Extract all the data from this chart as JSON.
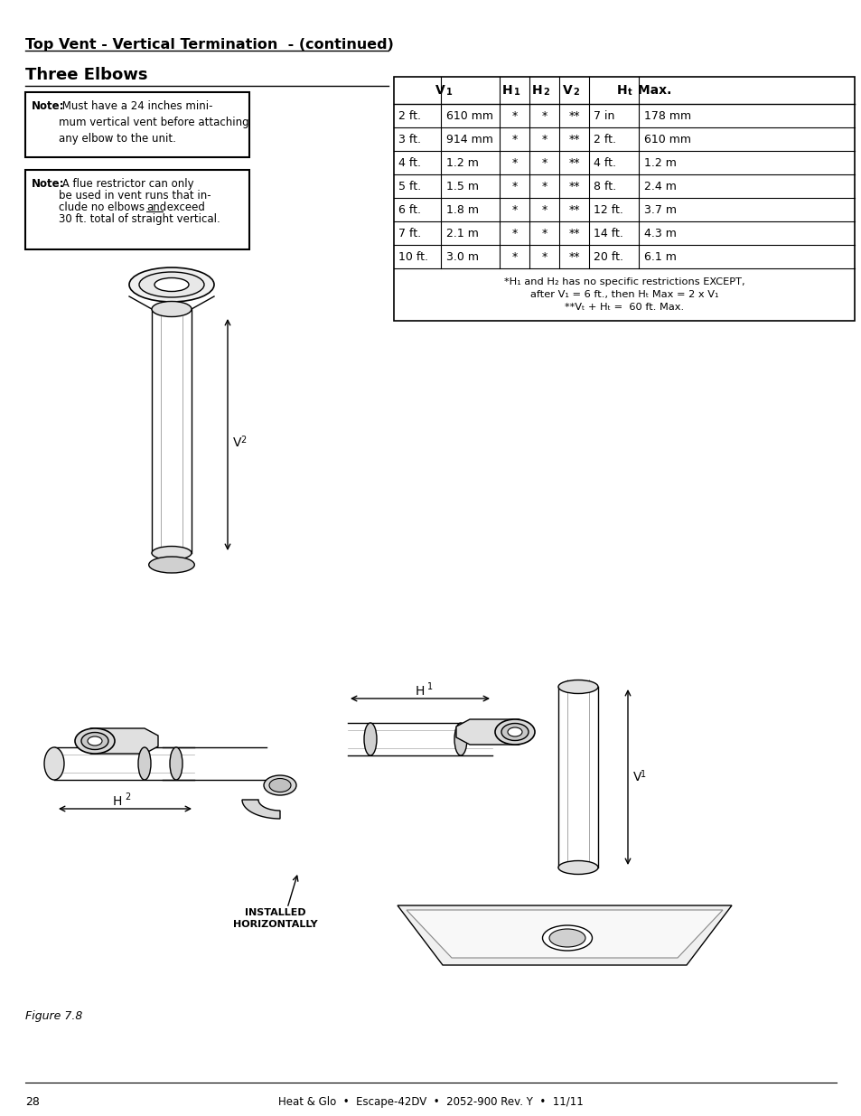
{
  "page_title": "Top Vent - Vertical Termination  - (continued)",
  "section_title": "Three Elbows",
  "note1_text_bold": "Note:",
  "note1_text_rest": " Must have a 24 inches mini-\nmum vertical vent before attaching\nany elbow to the unit.",
  "note2_text_bold": "Note:",
  "note2_text_part1": " A flue restrictor can only\nbe used in vent runs that in-\nclude no elbows ",
  "note2_underline": "and",
  "note2_text_part2": " exceed\n30 ft. total of straight vertical.",
  "table_data": [
    [
      "2 ft.",
      "610 mm",
      "*",
      "*",
      "**",
      "7 in",
      "178 mm"
    ],
    [
      "3 ft.",
      "914 mm",
      "*",
      "*",
      "**",
      "2 ft.",
      "610 mm"
    ],
    [
      "4 ft.",
      "1.2 m",
      "*",
      "*",
      "**",
      "4 ft.",
      "1.2 m"
    ],
    [
      "5 ft.",
      "1.5 m",
      "*",
      "*",
      "**",
      "8 ft.",
      "2.4 m"
    ],
    [
      "6 ft.",
      "1.8 m",
      "*",
      "*",
      "**",
      "12 ft.",
      "3.7 m"
    ],
    [
      "7 ft.",
      "2.1 m",
      "*",
      "*",
      "**",
      "14 ft.",
      "4.3 m"
    ],
    [
      "10 ft.",
      "3.0 m",
      "*",
      "*",
      "**",
      "20 ft.",
      "6.1 m"
    ]
  ],
  "table_footnote1": "*H₁ and H₂ has no specific restrictions EXCEPT,",
  "table_footnote2": "after V₁ = 6 ft., then Hₜ Max = 2 x V₁",
  "table_footnote3": "**Vₜ + Hₜ =  60 ft. Max.",
  "figure_caption": "Figure 7.8",
  "footer_text": "Heat & Glo  •  Escape-42DV  •  2052-900 Rev. Y  •  11/11",
  "installed_label": "INSTALLED\nHORIZONTALLY",
  "bg_color": "#ffffff"
}
